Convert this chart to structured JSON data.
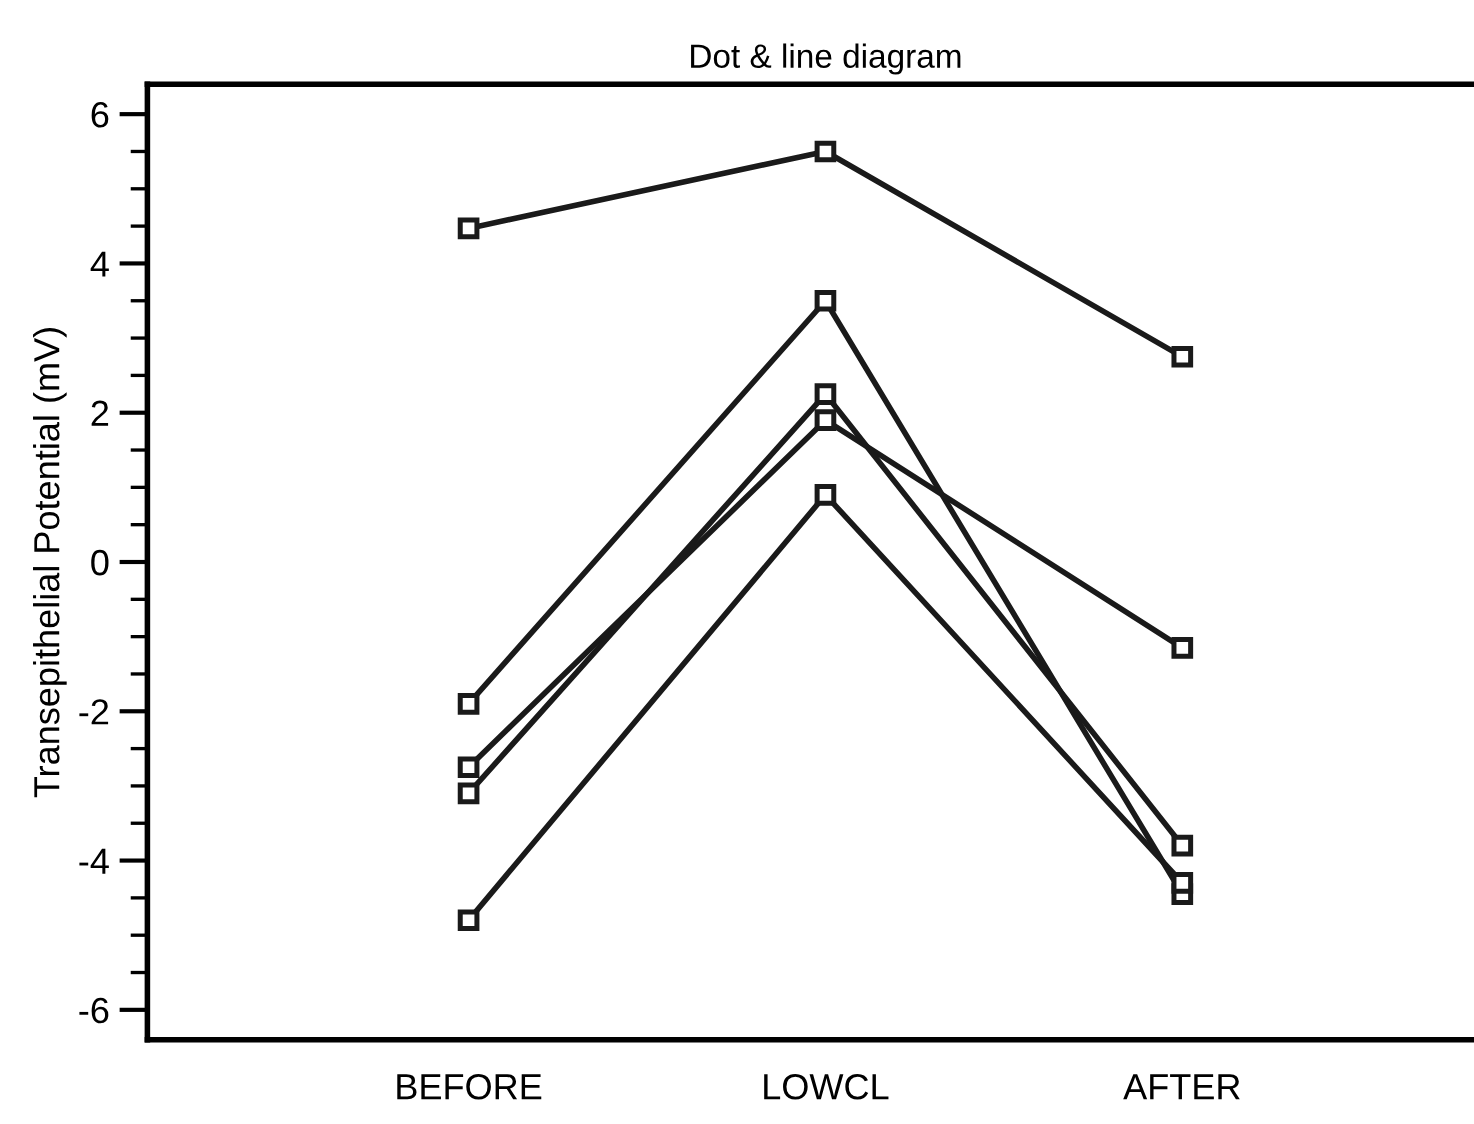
{
  "chart_data": {
    "type": "line",
    "title": "Dot & line diagram",
    "ylabel": "Transepithelial Potential (mV)",
    "categories": [
      "BEFORE",
      "LOWCL",
      "AFTER"
    ],
    "series": [
      {
        "color": "#1a1a1a",
        "values": [
          4.47,
          5.5,
          2.75
        ]
      },
      {
        "color": "#1a1a1a",
        "values": [
          -1.9,
          3.5,
          -4.45
        ]
      },
      {
        "color": "#1a1a1a",
        "values": [
          -2.75,
          1.9,
          -1.15
        ]
      },
      {
        "color": "#1a1a1a",
        "values": [
          -3.1,
          2.25,
          -3.8
        ]
      },
      {
        "color": "#1a1a1a",
        "values": [
          -4.8,
          0.9,
          -4.3
        ]
      }
    ],
    "ylim": [
      -6.4,
      6.4
    ],
    "yticks": [
      -6,
      -4,
      -2,
      0,
      2,
      4,
      6
    ],
    "grid": false,
    "legend": false,
    "marker": "square",
    "line_style": "solid"
  }
}
